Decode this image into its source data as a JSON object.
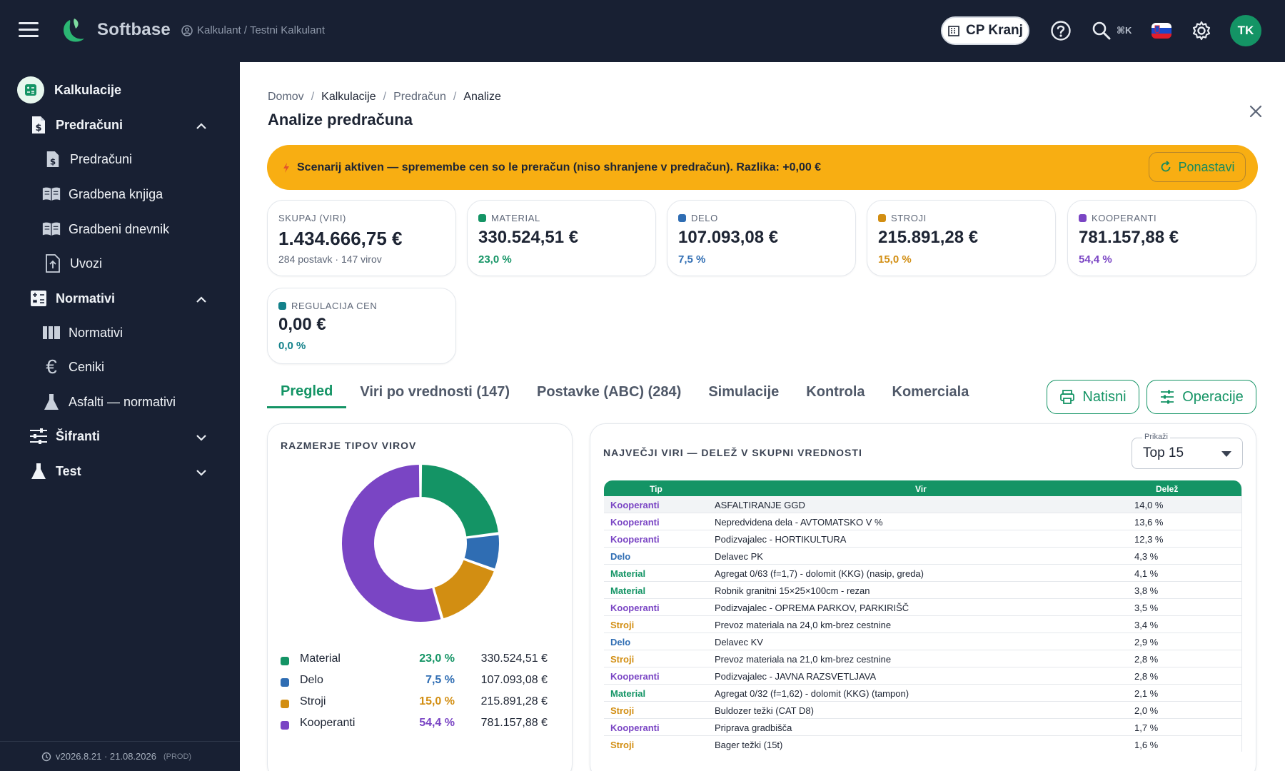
{
  "header": {
    "brand": "Softbase",
    "breadcrumb_top": "Kalkulant / Testni Kalkulant",
    "company": "CP Kranj",
    "shortcut": "⌘K",
    "avatar": "TK",
    "icons": [
      "menu-icon",
      "logo-icon",
      "user-circle-icon",
      "building-icon",
      "help-icon",
      "search-icon",
      "flag-icon",
      "gear-icon"
    ]
  },
  "sidebar": {
    "section": "Kalkulacije",
    "groups": [
      {
        "label": "Predračuni",
        "items": [
          "Predračuni",
          "Gradbena knjiga",
          "Gradbeni dnevnik",
          "Uvozi"
        ]
      },
      {
        "label": "Normativi",
        "items": [
          "Normativi",
          "Ceniki",
          "Asfalti — normativi"
        ]
      },
      {
        "label": "Šifranti",
        "items": []
      },
      {
        "label": "Test",
        "items": []
      }
    ],
    "footer_version": "v2026.8.21 · 21.08.2026",
    "footer_env": "(PROD)"
  },
  "page": {
    "breadcrumb": [
      "Domov",
      "Kalkulacije",
      "Predračun",
      "Analize"
    ],
    "title": "Analize predračuna"
  },
  "banner": {
    "text": "Scenarij aktiven — spremembe cen so le preračun (niso shranjene v predračun). Razlika: +0,00 €",
    "reset_label": "Ponastavi",
    "color": "#f8ae12"
  },
  "cards": {
    "total": {
      "label": "SKUPAJ (VIRI)",
      "value": "1.434.666,75 €",
      "sub": "284 postavk · 147 virov"
    },
    "material": {
      "label": "MATERIAL",
      "value": "330.524,51 €",
      "pct": "23,0 %",
      "color": "#149465"
    },
    "delo": {
      "label": "DELO",
      "value": "107.093,08 €",
      "pct": "7,5 %",
      "color": "#2f6db3"
    },
    "stroji": {
      "label": "STROJI",
      "value": "215.891,28 €",
      "pct": "15,0 %",
      "color": "#d28e12"
    },
    "kooperanti": {
      "label": "KOOPERANTI",
      "value": "781.157,88 €",
      "pct": "54,4 %",
      "color": "#7a45c4"
    },
    "regulacija": {
      "label": "REGULACIJA CEN",
      "value": "0,00 €",
      "pct": "0,0 %",
      "color": "#13818a"
    }
  },
  "tabs": [
    "Pregled",
    "Viri po vrednosti (147)",
    "Postavke (ABC) (284)",
    "Simulacije",
    "Kontrola",
    "Komerciala"
  ],
  "actions": {
    "print": "Natisni",
    "operations": "Operacije"
  },
  "donut_panel": {
    "title": "RAZMERJE TIPOV VIROV",
    "legend": [
      {
        "name": "Material",
        "pct": "23,0 %",
        "amount": "330.524,51 €",
        "color": "#149465"
      },
      {
        "name": "Delo",
        "pct": "7,5 %",
        "amount": "107.093,08 €",
        "color": "#2f6db3"
      },
      {
        "name": "Stroji",
        "pct": "15,0 %",
        "amount": "215.891,28 €",
        "color": "#d28e12"
      },
      {
        "name": "Kooperanti",
        "pct": "54,4 %",
        "amount": "781.157,88 €",
        "color": "#7a45c4"
      }
    ]
  },
  "chart_data": {
    "type": "pie",
    "categories": [
      "Material",
      "Delo",
      "Stroji",
      "Kooperanti"
    ],
    "values": [
      23.0,
      7.5,
      15.0,
      54.4
    ],
    "colors": [
      "#149465",
      "#2f6db3",
      "#d28e12",
      "#7a45c4"
    ],
    "title": "RAZMERJE TIPOV VIROV"
  },
  "table_panel": {
    "title": "NAJVEČJI VIRI — DELEŽ V SKUPNI VREDNOSTI",
    "select_label": "Prikaži",
    "select_value": "Top 15",
    "columns": [
      "Tip",
      "Vir",
      "Delež"
    ],
    "type_colors": {
      "Kooperanti": "#7a45c4",
      "Delo": "#2f6db3",
      "Material": "#149465",
      "Stroji": "#d28e12"
    },
    "rows": [
      {
        "tip": "Kooperanti",
        "vir": "ASFALTIRANJE GGD",
        "delez": "14,0 %"
      },
      {
        "tip": "Kooperanti",
        "vir": "Nepredvidena dela - AVTOMATSKO V %",
        "delez": "13,6 %"
      },
      {
        "tip": "Kooperanti",
        "vir": "Podizvajalec - HORTIKULTURA",
        "delez": "12,3 %"
      },
      {
        "tip": "Delo",
        "vir": "Delavec PK",
        "delez": "4,3 %"
      },
      {
        "tip": "Material",
        "vir": "Agregat 0/63 (f=1,7) - dolomit (KKG) (nasip, greda)",
        "delez": "4,1 %"
      },
      {
        "tip": "Material",
        "vir": "Robnik granitni 15×25×100cm - rezan",
        "delez": "3,8 %"
      },
      {
        "tip": "Kooperanti",
        "vir": "Podizvajalec - OPREMA PARKOV, PARKIRIŠČ",
        "delez": "3,5 %"
      },
      {
        "tip": "Stroji",
        "vir": "Prevoz materiala na 24,0 km-brez cestnine",
        "delez": "3,4 %"
      },
      {
        "tip": "Delo",
        "vir": "Delavec KV",
        "delez": "2,9 %"
      },
      {
        "tip": "Stroji",
        "vir": "Prevoz materiala na 21,0 km-brez cestnine",
        "delez": "2,8 %"
      },
      {
        "tip": "Kooperanti",
        "vir": "Podizvajalec - JAVNA RAZSVETLJAVA",
        "delez": "2,8 %"
      },
      {
        "tip": "Material",
        "vir": "Agregat 0/32 (f=1,62) - dolomit (KKG) (tampon)",
        "delez": "2,1 %"
      },
      {
        "tip": "Stroji",
        "vir": "Buldozer težki (CAT D8)",
        "delez": "2,0 %"
      },
      {
        "tip": "Kooperanti",
        "vir": "Priprava gradbišča",
        "delez": "1,7 %"
      },
      {
        "tip": "Stroji",
        "vir": "Bager težki (15t)",
        "delez": "1,6 %"
      }
    ]
  }
}
